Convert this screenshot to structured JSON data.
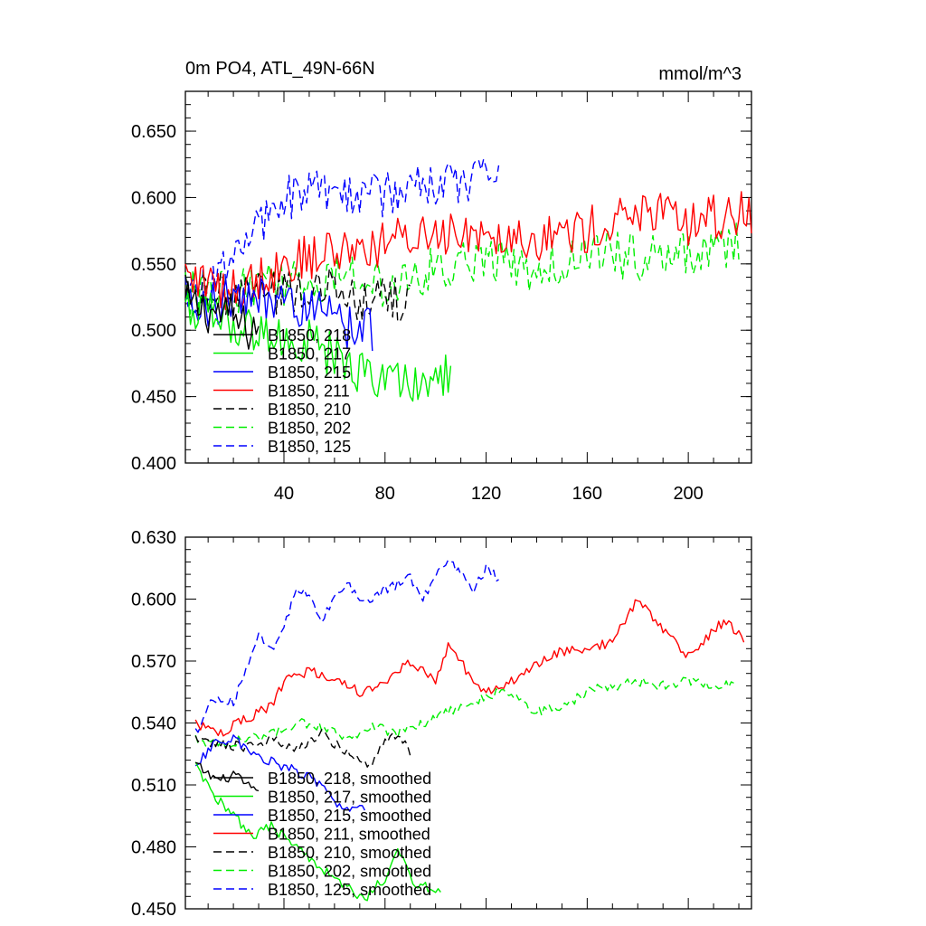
{
  "header": {
    "title": "0m PO4, ATL_49N-66N",
    "units": "mmol/m^3"
  },
  "colors": {
    "218": "#000000",
    "217": "#00ee00",
    "215": "#0000ff",
    "211": "#ff0000",
    "210": "#000000",
    "202": "#00ee00",
    "125": "#0000ff"
  },
  "chart_data": [
    {
      "type": "line",
      "title": "0m PO4, ATL_49N-66N",
      "units_label": "mmol/m^3",
      "xlim": [
        1,
        225
      ],
      "ylim": [
        0.4,
        0.68
      ],
      "x_ticks": [
        40,
        80,
        120,
        160,
        200
      ],
      "y_ticks": [
        0.4,
        0.45,
        0.5,
        0.55,
        0.6,
        0.65
      ],
      "y_tick_labels": [
        "0.400",
        "0.450",
        "0.500",
        "0.550",
        "0.600",
        "0.650"
      ],
      "x_tick_labels": [
        "40",
        "80",
        "120",
        "160",
        "200"
      ],
      "series": [
        {
          "name": "B1850, 218",
          "dash": "solid",
          "color_key": "218",
          "x_start": 1,
          "x_end": 30,
          "anchors": [
            [
              1,
              0.52
            ],
            [
              10,
              0.515
            ],
            [
              20,
              0.51
            ],
            [
              25,
              0.5
            ],
            [
              30,
              0.505
            ]
          ]
        },
        {
          "name": "B1850, 217",
          "dash": "solid",
          "color_key": "217",
          "x_start": 1,
          "x_end": 106,
          "anchors": [
            [
              1,
              0.515
            ],
            [
              15,
              0.51
            ],
            [
              30,
              0.495
            ],
            [
              40,
              0.495
            ],
            [
              50,
              0.49
            ],
            [
              60,
              0.48
            ],
            [
              70,
              0.47
            ],
            [
              80,
              0.46
            ],
            [
              90,
              0.465
            ],
            [
              100,
              0.46
            ],
            [
              106,
              0.47
            ]
          ]
        },
        {
          "name": "B1850, 215",
          "dash": "solid",
          "color_key": "215",
          "x_start": 1,
          "x_end": 75,
          "anchors": [
            [
              1,
              0.515
            ],
            [
              15,
              0.52
            ],
            [
              30,
              0.525
            ],
            [
              45,
              0.52
            ],
            [
              55,
              0.515
            ],
            [
              65,
              0.5
            ],
            [
              75,
              0.5
            ]
          ]
        },
        {
          "name": "B1850, 211",
          "dash": "solid",
          "color_key": "211",
          "x_start": 1,
          "x_end": 225,
          "anchors": [
            [
              1,
              0.54
            ],
            [
              20,
              0.53
            ],
            [
              40,
              0.55
            ],
            [
              60,
              0.56
            ],
            [
              80,
              0.565
            ],
            [
              100,
              0.575
            ],
            [
              120,
              0.575
            ],
            [
              140,
              0.57
            ],
            [
              160,
              0.575
            ],
            [
              180,
              0.59
            ],
            [
              200,
              0.58
            ],
            [
              225,
              0.59
            ]
          ]
        },
        {
          "name": "B1850, 210",
          "dash": "dashed",
          "color_key": "210",
          "x_start": 1,
          "x_end": 90,
          "anchors": [
            [
              1,
              0.53
            ],
            [
              20,
              0.525
            ],
            [
              40,
              0.53
            ],
            [
              60,
              0.535
            ],
            [
              75,
              0.52
            ],
            [
              90,
              0.525
            ]
          ]
        },
        {
          "name": "B1850, 202",
          "dash": "dashed",
          "color_key": "202",
          "x_start": 1,
          "x_end": 220,
          "anchors": [
            [
              1,
              0.53
            ],
            [
              20,
              0.53
            ],
            [
              40,
              0.535
            ],
            [
              60,
              0.54
            ],
            [
              80,
              0.535
            ],
            [
              100,
              0.545
            ],
            [
              120,
              0.555
            ],
            [
              140,
              0.545
            ],
            [
              160,
              0.56
            ],
            [
              180,
              0.555
            ],
            [
              200,
              0.56
            ],
            [
              220,
              0.565
            ]
          ]
        },
        {
          "name": "B1850, 125",
          "dash": "dashed",
          "color_key": "125",
          "x_start": 1,
          "x_end": 125,
          "anchors": [
            [
              1,
              0.525
            ],
            [
              15,
              0.54
            ],
            [
              30,
              0.58
            ],
            [
              45,
              0.605
            ],
            [
              60,
              0.6
            ],
            [
              75,
              0.6
            ],
            [
              90,
              0.605
            ],
            [
              105,
              0.615
            ],
            [
              125,
              0.61
            ]
          ]
        }
      ]
    },
    {
      "type": "line",
      "title": "",
      "xlim": [
        1,
        225
      ],
      "ylim": [
        0.45,
        0.63
      ],
      "x_ticks": [
        40,
        80,
        120,
        160,
        200
      ],
      "y_ticks": [
        0.45,
        0.48,
        0.51,
        0.54,
        0.57,
        0.6,
        0.63
      ],
      "y_tick_labels": [
        "0.450",
        "0.480",
        "0.510",
        "0.540",
        "0.570",
        "0.600",
        "0.630"
      ],
      "series": [
        {
          "name": "B1850, 218, smoothed",
          "dash": "solid",
          "color_key": "218",
          "x_start": 5,
          "x_end": 30,
          "anchors": [
            [
              5,
              0.52
            ],
            [
              10,
              0.515
            ],
            [
              15,
              0.512
            ],
            [
              20,
              0.515
            ],
            [
              25,
              0.51
            ],
            [
              30,
              0.505
            ]
          ]
        },
        {
          "name": "B1850, 217, smoothed",
          "dash": "solid",
          "color_key": "217",
          "x_start": 5,
          "x_end": 102,
          "anchors": [
            [
              5,
              0.52
            ],
            [
              12,
              0.505
            ],
            [
              20,
              0.495
            ],
            [
              28,
              0.485
            ],
            [
              35,
              0.49
            ],
            [
              45,
              0.48
            ],
            [
              55,
              0.47
            ],
            [
              65,
              0.46
            ],
            [
              72,
              0.455
            ],
            [
              80,
              0.465
            ],
            [
              85,
              0.478
            ],
            [
              92,
              0.462
            ],
            [
              102,
              0.458
            ]
          ]
        },
        {
          "name": "B1850, 215, smoothed",
          "dash": "solid",
          "color_key": "215",
          "x_start": 5,
          "x_end": 72,
          "anchors": [
            [
              5,
              0.518
            ],
            [
              12,
              0.53
            ],
            [
              20,
              0.532
            ],
            [
              28,
              0.525
            ],
            [
              38,
              0.52
            ],
            [
              48,
              0.515
            ],
            [
              55,
              0.51
            ],
            [
              62,
              0.5
            ],
            [
              72,
              0.498
            ]
          ]
        },
        {
          "name": "B1850, 211, smoothed",
          "dash": "solid",
          "color_key": "211",
          "x_start": 5,
          "x_end": 222,
          "anchors": [
            [
              5,
              0.54
            ],
            [
              15,
              0.535
            ],
            [
              25,
              0.542
            ],
            [
              35,
              0.548
            ],
            [
              40,
              0.56
            ],
            [
              50,
              0.565
            ],
            [
              60,
              0.562
            ],
            [
              70,
              0.555
            ],
            [
              80,
              0.56
            ],
            [
              90,
              0.57
            ],
            [
              100,
              0.56
            ],
            [
              105,
              0.578
            ],
            [
              110,
              0.57
            ],
            [
              115,
              0.558
            ],
            [
              120,
              0.555
            ],
            [
              130,
              0.56
            ],
            [
              140,
              0.568
            ],
            [
              150,
              0.575
            ],
            [
              160,
              0.575
            ],
            [
              170,
              0.58
            ],
            [
              180,
              0.6
            ],
            [
              190,
              0.585
            ],
            [
              200,
              0.572
            ],
            [
              210,
              0.585
            ],
            [
              215,
              0.59
            ],
            [
              222,
              0.58
            ]
          ]
        },
        {
          "name": "B1850, 210, smoothed",
          "dash": "dashed",
          "color_key": "210",
          "x_start": 5,
          "x_end": 90,
          "anchors": [
            [
              5,
              0.532
            ],
            [
              15,
              0.53
            ],
            [
              25,
              0.528
            ],
            [
              35,
              0.532
            ],
            [
              45,
              0.528
            ],
            [
              55,
              0.535
            ],
            [
              65,
              0.525
            ],
            [
              75,
              0.52
            ],
            [
              80,
              0.532
            ],
            [
              85,
              0.535
            ],
            [
              90,
              0.525
            ]
          ]
        },
        {
          "name": "B1850, 202, smoothed",
          "dash": "dashed",
          "color_key": "202",
          "x_start": 5,
          "x_end": 218,
          "anchors": [
            [
              5,
              0.532
            ],
            [
              15,
              0.53
            ],
            [
              25,
              0.532
            ],
            [
              35,
              0.535
            ],
            [
              45,
              0.54
            ],
            [
              55,
              0.538
            ],
            [
              65,
              0.532
            ],
            [
              75,
              0.538
            ],
            [
              85,
              0.535
            ],
            [
              95,
              0.54
            ],
            [
              105,
              0.545
            ],
            [
              115,
              0.55
            ],
            [
              125,
              0.555
            ],
            [
              135,
              0.55
            ],
            [
              140,
              0.545
            ],
            [
              150,
              0.548
            ],
            [
              160,
              0.555
            ],
            [
              170,
              0.558
            ],
            [
              180,
              0.56
            ],
            [
              190,
              0.558
            ],
            [
              200,
              0.56
            ],
            [
              210,
              0.558
            ],
            [
              218,
              0.56
            ]
          ]
        },
        {
          "name": "B1850, 125, smoothed",
          "dash": "dashed",
          "color_key": "125",
          "x_start": 5,
          "x_end": 125,
          "anchors": [
            [
              5,
              0.535
            ],
            [
              10,
              0.548
            ],
            [
              15,
              0.552
            ],
            [
              20,
              0.55
            ],
            [
              25,
              0.565
            ],
            [
              30,
              0.585
            ],
            [
              35,
              0.575
            ],
            [
              40,
              0.588
            ],
            [
              45,
              0.605
            ],
            [
              50,
              0.602
            ],
            [
              55,
              0.59
            ],
            [
              60,
              0.6
            ],
            [
              65,
              0.608
            ],
            [
              70,
              0.598
            ],
            [
              75,
              0.6
            ],
            [
              80,
              0.605
            ],
            [
              90,
              0.61
            ],
            [
              95,
              0.6
            ],
            [
              100,
              0.612
            ],
            [
              105,
              0.618
            ],
            [
              110,
              0.612
            ],
            [
              115,
              0.605
            ],
            [
              120,
              0.615
            ],
            [
              125,
              0.61
            ]
          ]
        }
      ]
    }
  ]
}
